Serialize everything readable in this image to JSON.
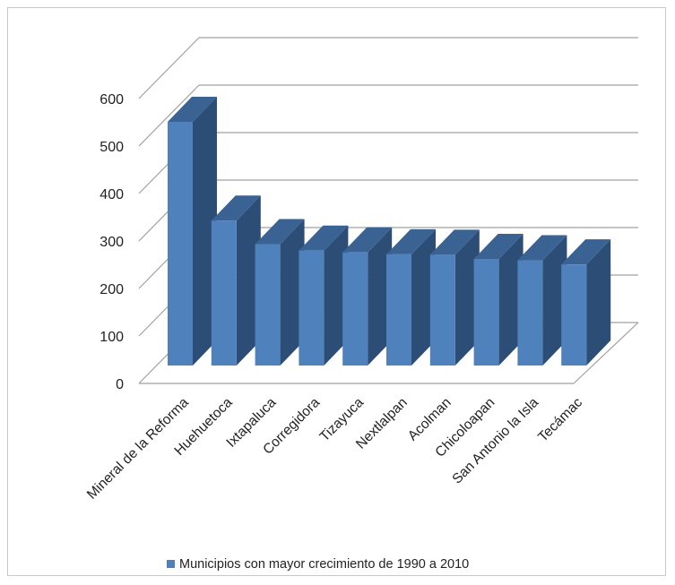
{
  "chart_data": {
    "type": "bar",
    "categories": [
      "Mineral de la Reforma",
      "Huehuetoca",
      "Ixtapaluca",
      "Corregidora",
      "Tizayuca",
      "Nextlalpan",
      "Acolman",
      "Chicoloapan",
      "San Antonio la Isla",
      "Tecámac"
    ],
    "series": [
      {
        "name": "Municipios con mayor crecimiento  de 1990 a 2010",
        "values": [
          528,
          314,
          263,
          249,
          245,
          241,
          240,
          231,
          228,
          219
        ]
      }
    ],
    "yticks": [
      "0",
      "100",
      "200",
      "300",
      "400",
      "500",
      "600"
    ],
    "ylim": [
      0,
      600
    ],
    "grid": true,
    "legend_position": "bottom",
    "style": "3d-column",
    "colors": {
      "front": "#4f81bd",
      "side": "#2c4d75",
      "top": "#3a6394",
      "grid": "#a0a0a0"
    }
  }
}
